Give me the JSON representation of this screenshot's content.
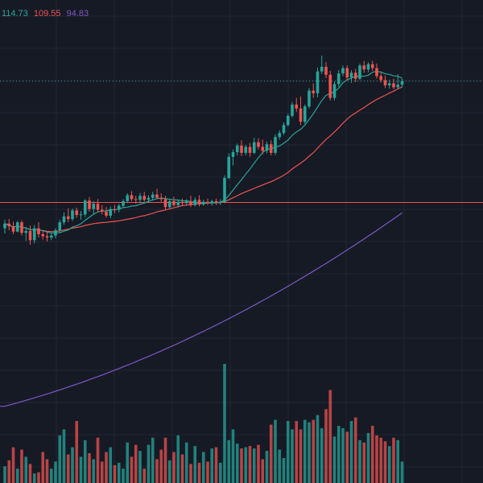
{
  "legend": [
    {
      "value": "114.73",
      "color": "#26a69a"
    },
    {
      "value": "109.55",
      "color": "#ef5350"
    },
    {
      "value": "94.83",
      "color": "#7e57c2"
    }
  ],
  "colors": {
    "background": "#161a25",
    "grid": "#232735",
    "up": "#26a69a",
    "down": "#ef5350",
    "ma_short": "#26a69a",
    "ma_mid": "#ef5350",
    "ma_long": "#7e57c2",
    "price_line": "#26a69a",
    "reference_line": "#ef5350"
  },
  "chart_data": {
    "type": "candlestick",
    "title": "",
    "xlabel": "",
    "ylabel": "",
    "ylim": [
      54,
      127
    ],
    "volume_ylim": [
      0,
      100
    ],
    "grid": true,
    "legend_position": "top-left",
    "last_price": 114.73,
    "reference_level": 96.4,
    "ohlc": [
      [
        92.5,
        93.8,
        91.7,
        93.2
      ],
      [
        93.2,
        93.9,
        92.2,
        92.8
      ],
      [
        92.8,
        93.5,
        91.6,
        92.0
      ],
      [
        92.0,
        93.6,
        91.9,
        93.4
      ],
      [
        93.4,
        93.7,
        91.4,
        91.8
      ],
      [
        91.8,
        92.7,
        90.6,
        92.1
      ],
      [
        92.1,
        92.9,
        90.0,
        90.7
      ],
      [
        90.7,
        93.0,
        90.2,
        92.5
      ],
      [
        92.5,
        93.4,
        91.1,
        91.6
      ],
      [
        91.6,
        92.2,
        90.8,
        91.3
      ],
      [
        91.3,
        92.0,
        90.5,
        91.1
      ],
      [
        91.1,
        91.8,
        90.7,
        91.4
      ],
      [
        91.4,
        92.5,
        91.0,
        92.2
      ],
      [
        92.2,
        93.8,
        91.8,
        93.4
      ],
      [
        93.4,
        94.9,
        93.0,
        94.3
      ],
      [
        94.3,
        95.5,
        93.4,
        93.9
      ],
      [
        93.9,
        95.5,
        93.6,
        95.2
      ],
      [
        95.2,
        95.6,
        94.1,
        94.5
      ],
      [
        94.5,
        95.1,
        93.8,
        94.6
      ],
      [
        94.6,
        96.9,
        94.2,
        96.7
      ],
      [
        96.7,
        97.2,
        95.0,
        95.4
      ],
      [
        95.4,
        96.6,
        94.6,
        96.2
      ],
      [
        96.2,
        96.9,
        94.9,
        95.3
      ],
      [
        95.3,
        96.0,
        94.6,
        95.0
      ],
      [
        95.0,
        95.7,
        94.1,
        94.4
      ],
      [
        94.4,
        95.8,
        94.0,
        95.4
      ],
      [
        95.4,
        96.0,
        94.8,
        95.3
      ],
      [
        95.3,
        96.2,
        94.9,
        95.9
      ],
      [
        95.9,
        96.9,
        95.6,
        96.6
      ],
      [
        96.6,
        97.8,
        96.3,
        97.5
      ],
      [
        97.5,
        98.1,
        96.6,
        96.9
      ],
      [
        96.9,
        97.4,
        96.2,
        96.8
      ],
      [
        96.8,
        97.8,
        96.3,
        97.4
      ],
      [
        97.4,
        98.0,
        96.5,
        96.8
      ],
      [
        96.8,
        97.5,
        96.4,
        97.1
      ],
      [
        97.1,
        98.0,
        96.7,
        97.6
      ],
      [
        97.6,
        98.5,
        96.9,
        97.1
      ],
      [
        97.1,
        97.8,
        96.5,
        96.9
      ],
      [
        96.9,
        97.4,
        95.3,
        95.7
      ],
      [
        95.7,
        96.8,
        95.5,
        96.6
      ],
      [
        96.6,
        97.3,
        95.8,
        96.0
      ],
      [
        96.0,
        96.8,
        95.6,
        96.5
      ],
      [
        96.5,
        97.0,
        95.9,
        96.3
      ],
      [
        96.3,
        96.9,
        95.9,
        96.6
      ],
      [
        96.6,
        97.4,
        95.7,
        96.0
      ],
      [
        96.0,
        97.2,
        95.8,
        96.8
      ],
      [
        96.8,
        97.5,
        95.8,
        96.1
      ],
      [
        96.1,
        96.8,
        95.9,
        96.5
      ],
      [
        96.5,
        97.0,
        96.0,
        96.3
      ],
      [
        96.3,
        96.8,
        95.9,
        96.6
      ],
      [
        96.6,
        97.0,
        96.0,
        96.4
      ],
      [
        96.4,
        96.9,
        96.0,
        96.5
      ],
      [
        96.5,
        100.5,
        96.3,
        100.1
      ],
      [
        100.1,
        103.8,
        99.9,
        103.3
      ],
      [
        103.3,
        104.4,
        102.0,
        104.0
      ],
      [
        104.0,
        105.3,
        103.5,
        105.0
      ],
      [
        105.0,
        105.8,
        103.4,
        103.9
      ],
      [
        103.9,
        105.1,
        103.5,
        104.8
      ],
      [
        104.8,
        105.4,
        103.3,
        103.9
      ],
      [
        103.9,
        106.2,
        103.7,
        105.5
      ],
      [
        105.5,
        106.1,
        104.4,
        104.8
      ],
      [
        104.8,
        105.9,
        103.7,
        104.2
      ],
      [
        104.2,
        105.6,
        103.8,
        105.2
      ],
      [
        105.2,
        105.8,
        103.5,
        103.9
      ],
      [
        103.9,
        106.7,
        103.6,
        106.3
      ],
      [
        106.3,
        107.3,
        105.9,
        106.9
      ],
      [
        106.9,
        108.5,
        106.6,
        108.1
      ],
      [
        108.1,
        109.8,
        107.9,
        109.5
      ],
      [
        109.5,
        111.6,
        109.2,
        111.2
      ],
      [
        111.2,
        112.2,
        110.1,
        110.6
      ],
      [
        110.6,
        112.4,
        108.1,
        108.6
      ],
      [
        108.6,
        111.2,
        108.3,
        110.9
      ],
      [
        110.9,
        113.7,
        110.6,
        113.3
      ],
      [
        113.3,
        114.4,
        112.2,
        112.9
      ],
      [
        112.9,
        116.8,
        112.3,
        116.2
      ],
      [
        116.2,
        118.6,
        115.8,
        116.9
      ],
      [
        116.9,
        117.6,
        115.2,
        115.7
      ],
      [
        115.7,
        116.3,
        111.8,
        112.2
      ],
      [
        112.2,
        114.7,
        111.8,
        114.3
      ],
      [
        114.3,
        116.4,
        113.9,
        115.9
      ],
      [
        115.9,
        117.1,
        115.5,
        116.7
      ],
      [
        116.7,
        117.1,
        114.8,
        115.3
      ],
      [
        115.3,
        116.4,
        114.5,
        116.0
      ],
      [
        116.0,
        116.6,
        114.6,
        115.1
      ],
      [
        115.1,
        117.4,
        114.9,
        117.1
      ],
      [
        117.1,
        117.8,
        116.0,
        116.5
      ],
      [
        116.5,
        117.6,
        116.1,
        117.3
      ],
      [
        117.3,
        117.8,
        116.3,
        116.7
      ],
      [
        116.7,
        117.4,
        115.1,
        115.5
      ],
      [
        115.5,
        116.0,
        114.5,
        114.9
      ],
      [
        114.9,
        115.6,
        113.7,
        114.1
      ],
      [
        114.1,
        114.9,
        113.6,
        114.4
      ],
      [
        114.4,
        115.1,
        113.5,
        113.8
      ],
      [
        113.8,
        115.8,
        113.6,
        114.2
      ],
      [
        114.2,
        115.1,
        113.8,
        114.73
      ]
    ],
    "volume": [
      14,
      19,
      30,
      12,
      28,
      22,
      16,
      8,
      9,
      26,
      20,
      12,
      18,
      40,
      45,
      24,
      30,
      52,
      22,
      36,
      25,
      20,
      38,
      18,
      26,
      30,
      15,
      17,
      12,
      34,
      22,
      32,
      27,
      12,
      32,
      38,
      20,
      28,
      38,
      19,
      26,
      40,
      24,
      34,
      16,
      31,
      17,
      26,
      18,
      29,
      30,
      17,
      100,
      36,
      45,
      33,
      29,
      30,
      31,
      29,
      32,
      20,
      27,
      49,
      53,
      28,
      21,
      52,
      45,
      52,
      45,
      53,
      51,
      53,
      57,
      46,
      62,
      78,
      39,
      48,
      46,
      43,
      52,
      55,
      36,
      34,
      42,
      48,
      40,
      38,
      35,
      31,
      38,
      36,
      18
    ],
    "series": [
      {
        "name": "114.73",
        "type": "ma",
        "period": 10
      },
      {
        "name": "109.55",
        "type": "ma",
        "period": 30
      },
      {
        "name": "94.83",
        "type": "ma",
        "period": 150
      }
    ],
    "long_ma_start": 65.6
  }
}
